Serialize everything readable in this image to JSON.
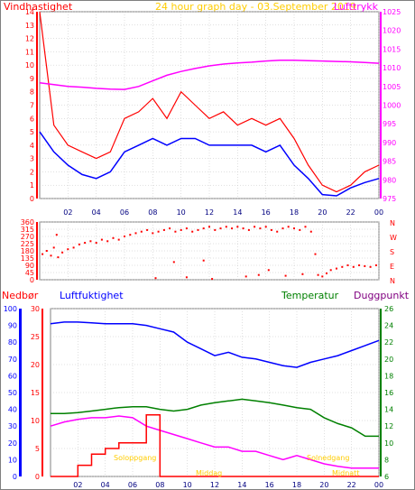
{
  "header": {
    "title": "24 hour graph day - 03.September 2019",
    "title_color": "#ffcc00"
  },
  "x_ticks": [
    "02",
    "04",
    "06",
    "08",
    "10",
    "12",
    "14",
    "16",
    "18",
    "20",
    "22",
    "00"
  ],
  "chart_data": [
    {
      "type": "line",
      "title": "",
      "left_label": "Vindhastighet",
      "right_label": "Lufttrykk",
      "left_ylim": [
        0,
        14
      ],
      "left_ticks": [
        "0",
        "1",
        "2",
        "3",
        "4",
        "5",
        "6",
        "7",
        "8",
        "9",
        "10",
        "11",
        "12",
        "13",
        "14"
      ],
      "right_ylim": [
        975,
        1025
      ],
      "right_ticks": [
        "975",
        "980",
        "985",
        "990",
        "995",
        "1000",
        "1005",
        "1010",
        "1015",
        "1020",
        "1025"
      ],
      "x_hours": [
        0,
        1,
        2,
        3,
        4,
        5,
        6,
        7,
        8,
        9,
        10,
        11,
        12,
        13,
        14,
        15,
        16,
        17,
        18,
        19,
        20,
        21,
        22,
        23,
        24
      ],
      "series": [
        {
          "name": "Vindkast",
          "axis": "left",
          "color": "#ff0000",
          "values": [
            14,
            5.5,
            4,
            3.5,
            3,
            3.5,
            6,
            6.5,
            7.5,
            6,
            8,
            7,
            6,
            6.5,
            5.5,
            6,
            5.5,
            6,
            4.5,
            2.5,
            1,
            0.5,
            1,
            2,
            2.5
          ]
        },
        {
          "name": "Middelvind",
          "axis": "left",
          "color": "#0000ff",
          "values": [
            5,
            3.5,
            2.5,
            1.8,
            1.5,
            2,
            3.5,
            4,
            4.5,
            4,
            4.5,
            4.5,
            4,
            4,
            4,
            4,
            3.5,
            4,
            2.5,
            1.5,
            0.3,
            0.2,
            0.8,
            1.2,
            1.5
          ]
        },
        {
          "name": "Lufttrykk",
          "axis": "right",
          "color": "#ff00ff",
          "values": [
            1006,
            1005.5,
            1005,
            1004.8,
            1004.5,
            1004.3,
            1004.2,
            1005,
            1006.5,
            1008,
            1009,
            1009.8,
            1010.5,
            1011,
            1011.3,
            1011.5,
            1011.8,
            1012,
            1012,
            1011.9,
            1011.8,
            1011.7,
            1011.6,
            1011.4,
            1011.2
          ]
        }
      ]
    },
    {
      "type": "scatter",
      "title": "",
      "left_ylim": [
        0,
        360
      ],
      "left_ticks": [
        "0",
        "45",
        "90",
        "135",
        "180",
        "225",
        "270",
        "315",
        "360"
      ],
      "right_tick_labels": [
        "N",
        "W",
        "S",
        "E",
        "N"
      ],
      "series": [
        {
          "name": "Vindretning",
          "color": "#ff0000",
          "x": [
            0.2,
            0.5,
            0.8,
            1.0,
            1.3,
            1.6,
            2.0,
            2.4,
            2.8,
            3.2,
            3.6,
            4.0,
            4.4,
            4.8,
            5.2,
            5.6,
            6.0,
            6.4,
            6.8,
            7.2,
            7.6,
            8.0,
            8.4,
            8.8,
            9.2,
            9.6,
            10.0,
            10.4,
            10.8,
            11.2,
            11.6,
            12.0,
            12.4,
            12.8,
            13.2,
            13.6,
            14.0,
            14.4,
            14.8,
            15.2,
            15.6,
            16.0,
            16.4,
            16.8,
            17.2,
            17.6,
            18.0,
            18.4,
            18.8,
            19.2,
            19.5,
            19.7,
            20.0,
            20.3,
            20.6,
            21.0,
            21.4,
            21.8,
            22.2,
            22.6,
            23.0,
            23.4,
            23.8,
            8.2,
            10.4,
            12.2,
            14.6,
            15.5,
            17.4,
            18.6,
            1.2,
            9.5,
            11.6,
            16.2
          ],
          "values": [
            160,
            180,
            150,
            200,
            140,
            170,
            190,
            200,
            220,
            230,
            240,
            230,
            250,
            240,
            260,
            250,
            270,
            280,
            290,
            300,
            310,
            290,
            300,
            310,
            320,
            300,
            310,
            320,
            300,
            310,
            320,
            330,
            310,
            320,
            330,
            320,
            330,
            320,
            310,
            330,
            320,
            330,
            310,
            300,
            320,
            330,
            320,
            310,
            330,
            300,
            160,
            30,
            20,
            40,
            60,
            70,
            80,
            90,
            80,
            90,
            85,
            80,
            90,
            10,
            15,
            5,
            20,
            30,
            25,
            35,
            280,
            110,
            120,
            60
          ]
        }
      ]
    },
    {
      "type": "line",
      "title": "",
      "left_label": "Nedbør",
      "left2_label": "Luftfuktighet",
      "right_label": "Temperatur",
      "right2_label": "Duggpunkt",
      "left_ylim": [
        0,
        100
      ],
      "left_ticks": [
        "0",
        "10",
        "20",
        "30",
        "40",
        "50",
        "60",
        "70",
        "80",
        "90",
        "100"
      ],
      "left2_ylim": [
        0,
        30
      ],
      "left2_ticks": [
        "0",
        "5",
        "10",
        "15",
        "20",
        "25",
        "30"
      ],
      "right_ylim": [
        6,
        26
      ],
      "right_ticks": [
        "6",
        "8",
        "10",
        "12",
        "14",
        "16",
        "18",
        "20",
        "22",
        "24",
        "26"
      ],
      "annotations": [
        "Soloppgang",
        "Middag",
        "Solnedgang",
        "Midnatt"
      ],
      "x_hours": [
        0,
        1,
        2,
        3,
        4,
        5,
        6,
        7,
        8,
        9,
        10,
        11,
        12,
        13,
        14,
        15,
        16,
        17,
        18,
        19,
        20,
        21,
        22,
        23,
        24
      ],
      "series": [
        {
          "name": "Luftfuktighet",
          "axis": "left",
          "color": "#0000ff",
          "values": [
            91,
            92,
            92,
            91.5,
            91,
            91,
            91,
            90,
            88,
            86,
            80,
            76,
            72,
            74,
            71,
            70,
            68,
            66,
            65,
            68,
            70,
            72,
            75,
            78,
            81
          ]
        },
        {
          "name": "Temperatur",
          "axis": "right",
          "color": "#008000",
          "values": [
            13.5,
            13.5,
            13.6,
            13.8,
            14,
            14.2,
            14.3,
            14.3,
            14,
            13.8,
            14,
            14.5,
            14.8,
            15,
            15.2,
            15,
            14.8,
            14.5,
            14.2,
            14,
            13,
            12.3,
            11.8,
            10.8,
            10.8
          ]
        },
        {
          "name": "Duggpunkt",
          "axis": "right",
          "color": "#ff00ff",
          "values": [
            12,
            12.5,
            12.8,
            13,
            13,
            13.2,
            13,
            12,
            11.5,
            11,
            10.5,
            10,
            9.5,
            9.5,
            9,
            9,
            8.5,
            8,
            8.5,
            8,
            7.5,
            7.2,
            7,
            7,
            7
          ]
        },
        {
          "name": "Nedbør",
          "axis": "left2",
          "color": "#ff0000",
          "values": [
            0,
            0,
            2,
            4,
            5,
            6,
            6,
            11,
            0,
            0,
            0,
            0,
            0,
            0,
            0,
            0,
            0,
            0,
            0,
            0,
            0,
            0,
            0,
            0,
            0
          ]
        }
      ]
    }
  ],
  "colors": {
    "wind_label": "#ff0000",
    "pressure": "#ff00ff",
    "gust": "#ff0000",
    "mean": "#0000ff",
    "rain": "#ff0000",
    "humidity": "#0000ff",
    "temp": "#008000",
    "dew": "#ff00ff",
    "grid": "#c0c0c0",
    "axis_left": "#0000ff",
    "annot": "#ffcc00"
  }
}
